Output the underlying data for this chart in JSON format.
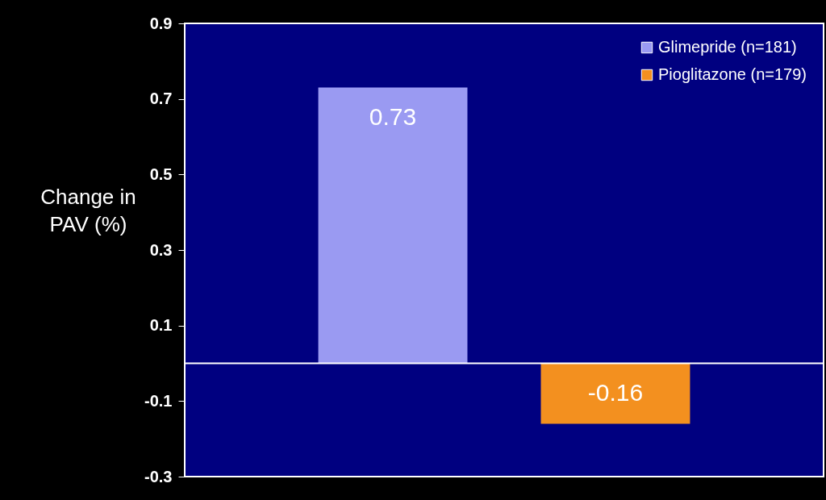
{
  "chart_data": {
    "type": "bar",
    "ylabel": "Change in PAV (%)",
    "categories": [
      null,
      null
    ],
    "series": [
      {
        "name": "Glimepride (n=181)",
        "color": "#9a9af2",
        "values": [
          0.73,
          null
        ]
      },
      {
        "name": "Pioglitazone (n=179)",
        "color": "#f3901f",
        "values": [
          null,
          -0.16
        ]
      }
    ],
    "ylim": [
      -0.3,
      0.9
    ],
    "yticks": [
      -0.3,
      -0.1,
      0.1,
      0.3,
      0.5,
      0.7,
      0.9
    ],
    "ref_lines": [
      {
        "axis": "y",
        "value": 0,
        "color": "#ffffff"
      }
    ],
    "data_labels": true,
    "legend": "top right",
    "tick_labels": "y",
    "grid": false
  }
}
